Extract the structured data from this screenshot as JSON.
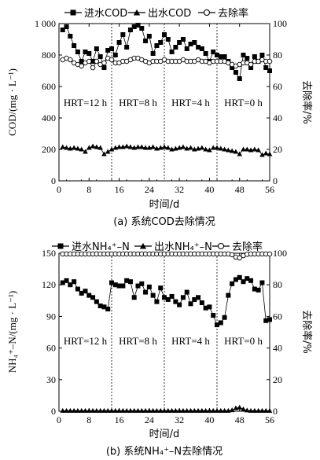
{
  "chart_data": [
    {
      "type": "line",
      "caption": "(a) 系统COD去除情况",
      "xlabel": "时间/d",
      "ylabel": "COD/(mg · L⁻¹)",
      "y2label": "去除率/%",
      "xlim": [
        0,
        56
      ],
      "ylim": [
        0,
        1000
      ],
      "y2lim": [
        0,
        100
      ],
      "xticks": [
        0,
        8,
        16,
        24,
        32,
        40,
        48,
        56
      ],
      "yticks": [
        0,
        200,
        400,
        600,
        800,
        1000
      ],
      "yticklabels": [
        "0",
        "200",
        "400",
        "600",
        "800",
        "1 000"
      ],
      "y2ticks": [
        0,
        20,
        40,
        60,
        80,
        100
      ],
      "legend_position": "top",
      "phase_dividers": [
        14,
        28,
        42
      ],
      "phase_labels": [
        {
          "text": "HRT=12 h",
          "x": 7,
          "y": 500
        },
        {
          "text": "HRT=8 h",
          "x": 21,
          "y": 500
        },
        {
          "text": "HRT=4 h",
          "x": 35,
          "y": 500
        },
        {
          "text": "HRT=0 h",
          "x": 49,
          "y": 500
        }
      ],
      "series": [
        {
          "name": "进水COD",
          "marker": "square",
          "axis": "left",
          "x": [
            1,
            2,
            3,
            4,
            5,
            6,
            7,
            8,
            9,
            10,
            11,
            12,
            13,
            14,
            15,
            16,
            17,
            18,
            19,
            20,
            21,
            22,
            23,
            24,
            25,
            26,
            27,
            28,
            29,
            30,
            31,
            32,
            33,
            34,
            35,
            36,
            37,
            38,
            39,
            40,
            41,
            42,
            43,
            44,
            45,
            46,
            47,
            48,
            49,
            50,
            51,
            52,
            53,
            54,
            55,
            56
          ],
          "values": [
            960,
            980,
            920,
            860,
            820,
            760,
            820,
            810,
            760,
            840,
            790,
            720,
            830,
            840,
            800,
            880,
            930,
            850,
            960,
            980,
            990,
            970,
            890,
            920,
            810,
            860,
            880,
            930,
            900,
            820,
            850,
            880,
            900,
            840,
            870,
            880,
            850,
            840,
            810,
            760,
            820,
            800,
            790,
            790,
            760,
            720,
            690,
            650,
            800,
            780,
            720,
            790,
            760,
            800,
            720,
            700
          ]
        },
        {
          "name": "出水COD",
          "marker": "triangle",
          "axis": "left",
          "x": [
            1,
            2,
            3,
            4,
            5,
            6,
            7,
            8,
            9,
            10,
            11,
            12,
            13,
            14,
            15,
            16,
            17,
            18,
            19,
            20,
            21,
            22,
            23,
            24,
            25,
            26,
            27,
            28,
            29,
            30,
            31,
            32,
            33,
            34,
            35,
            36,
            37,
            38,
            39,
            40,
            41,
            42,
            43,
            44,
            45,
            46,
            47,
            48,
            49,
            50,
            51,
            52,
            53,
            54,
            55,
            56
          ],
          "values": [
            215,
            210,
            205,
            210,
            205,
            200,
            185,
            210,
            220,
            215,
            210,
            170,
            185,
            200,
            210,
            215,
            215,
            220,
            215,
            210,
            215,
            215,
            210,
            210,
            215,
            205,
            210,
            215,
            210,
            200,
            205,
            210,
            215,
            205,
            210,
            200,
            205,
            210,
            200,
            195,
            210,
            210,
            205,
            200,
            195,
            190,
            185,
            170,
            200,
            200,
            195,
            200,
            195,
            165,
            175,
            170
          ]
        },
        {
          "name": "去除率",
          "marker": "circle-open",
          "axis": "right",
          "x": [
            1,
            2,
            3,
            4,
            5,
            6,
            7,
            8,
            9,
            10,
            11,
            12,
            13,
            14,
            15,
            16,
            17,
            18,
            19,
            20,
            21,
            22,
            23,
            24,
            25,
            26,
            27,
            28,
            29,
            30,
            31,
            32,
            33,
            34,
            35,
            36,
            37,
            38,
            39,
            40,
            41,
            42,
            43,
            44,
            45,
            46,
            47,
            48,
            49,
            50,
            51,
            52,
            53,
            54,
            55,
            56
          ],
          "values": [
            77,
            78,
            77,
            75,
            74,
            73,
            75,
            76,
            72,
            76,
            74,
            75,
            78,
            77,
            75,
            75,
            76,
            76,
            77,
            78,
            78,
            77,
            76,
            75,
            76,
            76,
            76,
            77,
            76,
            76,
            76,
            76,
            77,
            76,
            76,
            76,
            77,
            76,
            76,
            75,
            76,
            76,
            76,
            76,
            75,
            74,
            73,
            74,
            75,
            75,
            74,
            76,
            76,
            77,
            76,
            76
          ]
        }
      ]
    },
    {
      "type": "line",
      "caption": "(b) 系统NH₄⁺–N去除情况",
      "xlabel": "时间/d",
      "ylabel": "NH₄⁺–N/(mg · L⁻¹)",
      "y2label": "去除率/%",
      "xlim": [
        0,
        56
      ],
      "ylim": [
        0,
        150
      ],
      "y2lim": [
        0,
        100
      ],
      "xticks": [
        0,
        8,
        16,
        24,
        32,
        40,
        48,
        56
      ],
      "yticks": [
        0,
        30,
        60,
        90,
        120,
        150
      ],
      "yticklabels": [
        "0",
        "30",
        "60",
        "90",
        "120",
        "150"
      ],
      "y2ticks": [
        0,
        20,
        40,
        60,
        80,
        100
      ],
      "legend_position": "top",
      "phase_dividers": [
        14,
        28,
        42
      ],
      "phase_labels": [
        {
          "text": "HRT=12 h",
          "x": 7,
          "y": 67
        },
        {
          "text": "HRT=8 h",
          "x": 21,
          "y": 67
        },
        {
          "text": "HRT=4 h",
          "x": 35,
          "y": 67
        },
        {
          "text": "HRT=0 h",
          "x": 49,
          "y": 67
        }
      ],
      "series": [
        {
          "name": "进水NH₄⁺–N",
          "marker": "square",
          "axis": "left",
          "x": [
            1,
            2,
            3,
            4,
            5,
            6,
            7,
            8,
            9,
            10,
            11,
            12,
            13,
            14,
            15,
            16,
            17,
            18,
            19,
            20,
            21,
            22,
            23,
            24,
            25,
            26,
            27,
            28,
            29,
            30,
            31,
            32,
            33,
            34,
            35,
            36,
            37,
            38,
            39,
            40,
            41,
            42,
            43,
            44,
            45,
            46,
            47,
            48,
            49,
            50,
            51,
            52,
            53,
            54,
            55,
            56
          ],
          "values": [
            122,
            124,
            120,
            123,
            116,
            112,
            114,
            110,
            108,
            104,
            100,
            99,
            97,
            122,
            120,
            119,
            119,
            124,
            123,
            108,
            119,
            121,
            113,
            118,
            110,
            104,
            117,
            108,
            106,
            109,
            104,
            101,
            108,
            113,
            102,
            106,
            108,
            103,
            98,
            99,
            91,
            82,
            84,
            89,
            110,
            121,
            125,
            127,
            123,
            126,
            124,
            116,
            115,
            122,
            86,
            87
          ]
        },
        {
          "name": "出水NH₄⁺–N",
          "marker": "triangle",
          "axis": "left",
          "x": [
            1,
            2,
            3,
            4,
            5,
            6,
            7,
            8,
            9,
            10,
            11,
            12,
            13,
            14,
            15,
            16,
            17,
            18,
            19,
            20,
            21,
            22,
            23,
            24,
            25,
            26,
            27,
            28,
            29,
            30,
            31,
            32,
            33,
            34,
            35,
            36,
            37,
            38,
            39,
            40,
            41,
            42,
            43,
            44,
            45,
            46,
            47,
            48,
            49,
            50,
            51,
            52,
            53,
            54,
            55,
            56
          ],
          "values": [
            0.5,
            0.5,
            0.5,
            0.5,
            0.5,
            0.5,
            0.5,
            0.5,
            0.5,
            0.5,
            0.5,
            0.5,
            0.5,
            0.5,
            0.5,
            0.5,
            0.5,
            0.5,
            0.5,
            0.5,
            0.5,
            0.5,
            0.5,
            0.5,
            0.5,
            0.5,
            0.5,
            0.5,
            0.5,
            0.5,
            0.5,
            0.5,
            0.5,
            0.5,
            0.5,
            0.5,
            0.5,
            0.5,
            0.5,
            0.5,
            0.5,
            0.5,
            0.5,
            0.5,
            0.5,
            1,
            3,
            3.5,
            2,
            0.8,
            0.5,
            0.5,
            0.5,
            0.5,
            0.5,
            0.5
          ]
        },
        {
          "name": "去除率",
          "marker": "circle-open",
          "axis": "right",
          "x": [
            1,
            2,
            3,
            4,
            5,
            6,
            7,
            8,
            9,
            10,
            11,
            12,
            13,
            14,
            15,
            16,
            17,
            18,
            19,
            20,
            21,
            22,
            23,
            24,
            25,
            26,
            27,
            28,
            29,
            30,
            31,
            32,
            33,
            34,
            35,
            36,
            37,
            38,
            39,
            40,
            41,
            42,
            43,
            44,
            45,
            46,
            47,
            48,
            49,
            50,
            51,
            52,
            53,
            54,
            55,
            56
          ],
          "values": [
            99.5,
            99.5,
            99.5,
            99.5,
            99.5,
            99.5,
            99.5,
            99.5,
            99.5,
            99.5,
            99.5,
            99.5,
            99.5,
            99.5,
            99.5,
            99.5,
            99.5,
            99.5,
            99.5,
            99.5,
            99.5,
            99.5,
            99.5,
            99.5,
            99.5,
            99.5,
            99.5,
            99.5,
            99.5,
            99.5,
            99.5,
            99.5,
            99.5,
            99.5,
            99.5,
            99.5,
            99.5,
            99.5,
            99.5,
            99.5,
            99.5,
            99.5,
            99.5,
            99.5,
            99.5,
            99,
            97.5,
            97,
            98.5,
            99.3,
            99.5,
            99.5,
            99.5,
            99.5,
            99.5,
            99.5
          ]
        }
      ]
    }
  ]
}
